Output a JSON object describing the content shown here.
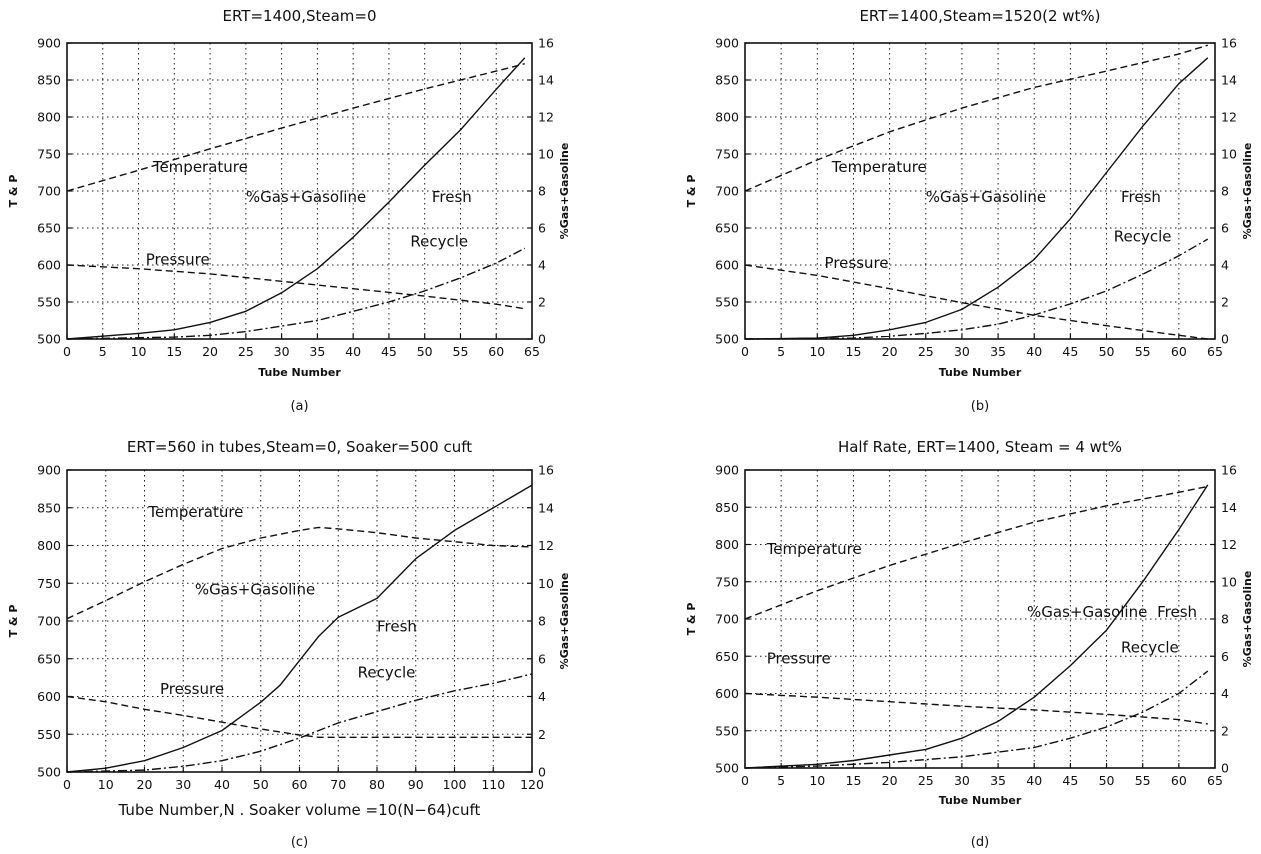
{
  "chart_data": [
    {
      "panel_label": "(a)",
      "type": "line",
      "title": "ERT=1400,Steam=0",
      "xlabel": "Tube Number",
      "ylabel": "T & P",
      "y2label": "%Gas+Gasoline",
      "xlim": [
        0,
        65
      ],
      "xticks": [
        0,
        5,
        10,
        15,
        20,
        25,
        30,
        35,
        40,
        45,
        50,
        55,
        60,
        65
      ],
      "ylim": [
        500,
        900
      ],
      "yticks": [
        500,
        550,
        600,
        650,
        700,
        750,
        800,
        850,
        900
      ],
      "y2lim": [
        0,
        16
      ],
      "y2ticks": [
        0,
        2,
        4,
        6,
        8,
        10,
        12,
        14,
        16
      ],
      "grid": true,
      "series": [
        {
          "name": "Temperature",
          "axis": "left",
          "style": "dashed",
          "x": [
            0,
            10,
            20,
            30,
            40,
            50,
            60,
            64
          ],
          "y": [
            700,
            728,
            757,
            785,
            812,
            838,
            862,
            872
          ]
        },
        {
          "name": "Pressure",
          "axis": "left",
          "style": "dashed",
          "x": [
            0,
            10,
            20,
            30,
            40,
            50,
            60,
            64
          ],
          "y": [
            600,
            595,
            588,
            578,
            568,
            558,
            547,
            541
          ]
        },
        {
          "name": "Fresh",
          "axis": "right",
          "style": "solid",
          "x": [
            0,
            10,
            15,
            20,
            25,
            30,
            35,
            40,
            45,
            50,
            55,
            60,
            64
          ],
          "y": [
            0,
            0.3,
            0.5,
            0.9,
            1.5,
            2.5,
            3.8,
            5.5,
            7.4,
            9.4,
            11.3,
            13.5,
            15.2
          ]
        },
        {
          "name": "Recycle",
          "axis": "right",
          "style": "dashdot",
          "x": [
            0,
            15,
            20,
            25,
            30,
            35,
            40,
            45,
            50,
            55,
            60,
            64
          ],
          "y": [
            0,
            0.1,
            0.2,
            0.4,
            0.7,
            1.0,
            1.5,
            2.0,
            2.6,
            3.3,
            4.1,
            4.9
          ]
        }
      ],
      "annotations": [
        {
          "text": "Temperature",
          "x": 12,
          "y": 726
        },
        {
          "text": "%Gas+Gasoline",
          "x": 25,
          "y": 685
        },
        {
          "text": "Fresh",
          "x": 51,
          "y": 685
        },
        {
          "text": "Recycle",
          "x": 48,
          "y": 625
        },
        {
          "text": "Pressure",
          "x": 11,
          "y": 601
        }
      ]
    },
    {
      "panel_label": "(b)",
      "type": "line",
      "title": "ERT=1400,Steam=1520(2 wt%)",
      "xlabel": "Tube Number",
      "ylabel": "T & P",
      "y2label": "%Gas+Gasoline",
      "xlim": [
        0,
        65
      ],
      "xticks": [
        0,
        5,
        10,
        15,
        20,
        25,
        30,
        35,
        40,
        45,
        50,
        55,
        60,
        65
      ],
      "ylim": [
        500,
        900
      ],
      "yticks": [
        500,
        550,
        600,
        650,
        700,
        750,
        800,
        850,
        900
      ],
      "y2lim": [
        0,
        16
      ],
      "y2ticks": [
        0,
        2,
        4,
        6,
        8,
        10,
        12,
        14,
        16
      ],
      "grid": true,
      "series": [
        {
          "name": "Temperature",
          "axis": "left",
          "style": "dashed",
          "x": [
            0,
            10,
            20,
            30,
            40,
            50,
            60,
            64
          ],
          "y": [
            700,
            742,
            780,
            812,
            840,
            862,
            885,
            897
          ]
        },
        {
          "name": "Pressure",
          "axis": "left",
          "style": "dashed",
          "x": [
            0,
            10,
            20,
            30,
            40,
            50,
            60,
            64
          ],
          "y": [
            600,
            586,
            568,
            549,
            532,
            518,
            505,
            500
          ]
        },
        {
          "name": "Fresh",
          "axis": "right",
          "style": "solid",
          "x": [
            0,
            10,
            15,
            20,
            25,
            30,
            35,
            40,
            45,
            50,
            55,
            60,
            64
          ],
          "y": [
            0,
            0.05,
            0.2,
            0.5,
            0.9,
            1.6,
            2.8,
            4.3,
            6.5,
            9.0,
            11.5,
            13.8,
            15.2
          ]
        },
        {
          "name": "Recycle",
          "axis": "right",
          "style": "dashdot",
          "x": [
            0,
            15,
            20,
            25,
            30,
            35,
            40,
            45,
            50,
            55,
            60,
            64
          ],
          "y": [
            0,
            0.05,
            0.15,
            0.3,
            0.5,
            0.8,
            1.3,
            1.9,
            2.6,
            3.5,
            4.5,
            5.4
          ]
        }
      ],
      "annotations": [
        {
          "text": "Temperature",
          "x": 12,
          "y": 726
        },
        {
          "text": "%Gas+Gasoline",
          "x": 25,
          "y": 685
        },
        {
          "text": "Fresh",
          "x": 52,
          "y": 685
        },
        {
          "text": "Recycle",
          "x": 51,
          "y": 632
        },
        {
          "text": "Pressure",
          "x": 11,
          "y": 596
        }
      ]
    },
    {
      "panel_label": "(c)",
      "type": "line",
      "title": "ERT=560 in tubes,Steam=0, Soaker=500 cuft",
      "xlabel": "Tube Number,N . Soaker volume =10(N−64)cuft",
      "ylabel": "T & P",
      "y2label": "%Gas+Gasoline",
      "xlim": [
        0,
        120
      ],
      "xticks": [
        0,
        10,
        20,
        30,
        40,
        50,
        60,
        70,
        80,
        90,
        100,
        110,
        120
      ],
      "ylim": [
        500,
        900
      ],
      "yticks": [
        500,
        550,
        600,
        650,
        700,
        750,
        800,
        850,
        900
      ],
      "y2lim": [
        0,
        16
      ],
      "y2ticks": [
        0,
        2,
        4,
        6,
        8,
        10,
        12,
        14,
        16
      ],
      "grid": true,
      "series": [
        {
          "name": "Temperature",
          "axis": "left",
          "style": "dashed",
          "x": [
            0,
            10,
            20,
            30,
            40,
            50,
            60,
            65,
            70,
            80,
            90,
            100,
            110,
            120
          ],
          "y": [
            703,
            727,
            752,
            775,
            796,
            810,
            820,
            824,
            822,
            817,
            810,
            805,
            800,
            798
          ]
        },
        {
          "name": "Pressure",
          "axis": "left",
          "style": "dashed",
          "x": [
            0,
            10,
            20,
            30,
            40,
            50,
            60,
            65,
            70,
            80,
            90,
            100,
            110,
            120
          ],
          "y": [
            600,
            593,
            583,
            575,
            566,
            557,
            549,
            546,
            546,
            546,
            546,
            546,
            546,
            546
          ]
        },
        {
          "name": "Fresh",
          "axis": "right",
          "style": "solid",
          "x": [
            0,
            10,
            20,
            30,
            40,
            50,
            55,
            60,
            65,
            70,
            80,
            90,
            100,
            110,
            120
          ],
          "y": [
            0,
            0.2,
            0.6,
            1.3,
            2.2,
            3.7,
            4.6,
            5.9,
            7.2,
            8.2,
            9.2,
            11.3,
            12.8,
            14.0,
            15.2
          ]
        },
        {
          "name": "Recycle",
          "axis": "right",
          "style": "dashdot",
          "x": [
            0,
            20,
            30,
            40,
            50,
            60,
            70,
            80,
            90,
            100,
            110,
            120
          ],
          "y": [
            0,
            0.1,
            0.3,
            0.6,
            1.1,
            1.8,
            2.6,
            3.2,
            3.8,
            4.3,
            4.7,
            5.2
          ]
        }
      ],
      "annotations": [
        {
          "text": "Temperature",
          "x": 21,
          "y": 838
        },
        {
          "text": "%Gas+Gasoline",
          "x": 33,
          "y": 735
        },
        {
          "text": "Fresh",
          "x": 80,
          "y": 686
        },
        {
          "text": "Recycle",
          "x": 75,
          "y": 625
        },
        {
          "text": "Pressure",
          "x": 24,
          "y": 603
        }
      ]
    },
    {
      "panel_label": "(d)",
      "type": "line",
      "title": "Half Rate, ERT=1400, Steam = 4 wt%",
      "xlabel": "Tube Number",
      "ylabel": "T & P",
      "y2label": "%Gas+Gasoline",
      "xlim": [
        0,
        65
      ],
      "xticks": [
        0,
        5,
        10,
        15,
        20,
        25,
        30,
        35,
        40,
        45,
        50,
        55,
        60,
        65
      ],
      "ylim": [
        500,
        900
      ],
      "yticks": [
        500,
        550,
        600,
        650,
        700,
        750,
        800,
        850,
        900
      ],
      "y2lim": [
        0,
        16
      ],
      "y2ticks": [
        0,
        2,
        4,
        6,
        8,
        10,
        12,
        14,
        16
      ],
      "grid": true,
      "series": [
        {
          "name": "Temperature",
          "axis": "left",
          "style": "dashed",
          "x": [
            0,
            10,
            20,
            30,
            40,
            50,
            60,
            64
          ],
          "y": [
            700,
            738,
            772,
            802,
            830,
            852,
            870,
            878
          ]
        },
        {
          "name": "Pressure",
          "axis": "left",
          "style": "dashed",
          "x": [
            0,
            10,
            20,
            30,
            40,
            50,
            60,
            64
          ],
          "y": [
            600,
            595,
            589,
            583,
            578,
            572,
            565,
            559
          ]
        },
        {
          "name": "Fresh",
          "axis": "right",
          "style": "solid",
          "x": [
            0,
            10,
            15,
            20,
            25,
            30,
            35,
            40,
            45,
            50,
            55,
            60,
            64
          ],
          "y": [
            0,
            0.2,
            0.4,
            0.7,
            1.0,
            1.6,
            2.5,
            3.8,
            5.5,
            7.4,
            10.0,
            12.8,
            15.2
          ]
        },
        {
          "name": "Recycle",
          "axis": "right",
          "style": "dashdot",
          "x": [
            0,
            10,
            20,
            30,
            40,
            45,
            50,
            55,
            60,
            64
          ],
          "y": [
            0,
            0.1,
            0.3,
            0.6,
            1.1,
            1.6,
            2.2,
            3.0,
            4.0,
            5.2
          ]
        }
      ],
      "annotations": [
        {
          "text": "Temperature",
          "x": 3,
          "y": 787
        },
        {
          "text": "%Gas+Gasoline",
          "x": 39,
          "y": 703
        },
        {
          "text": "Fresh",
          "x": 57,
          "y": 703
        },
        {
          "text": "Recycle",
          "x": 52,
          "y": 655
        },
        {
          "text": "Pressure",
          "x": 3,
          "y": 640
        }
      ]
    }
  ]
}
